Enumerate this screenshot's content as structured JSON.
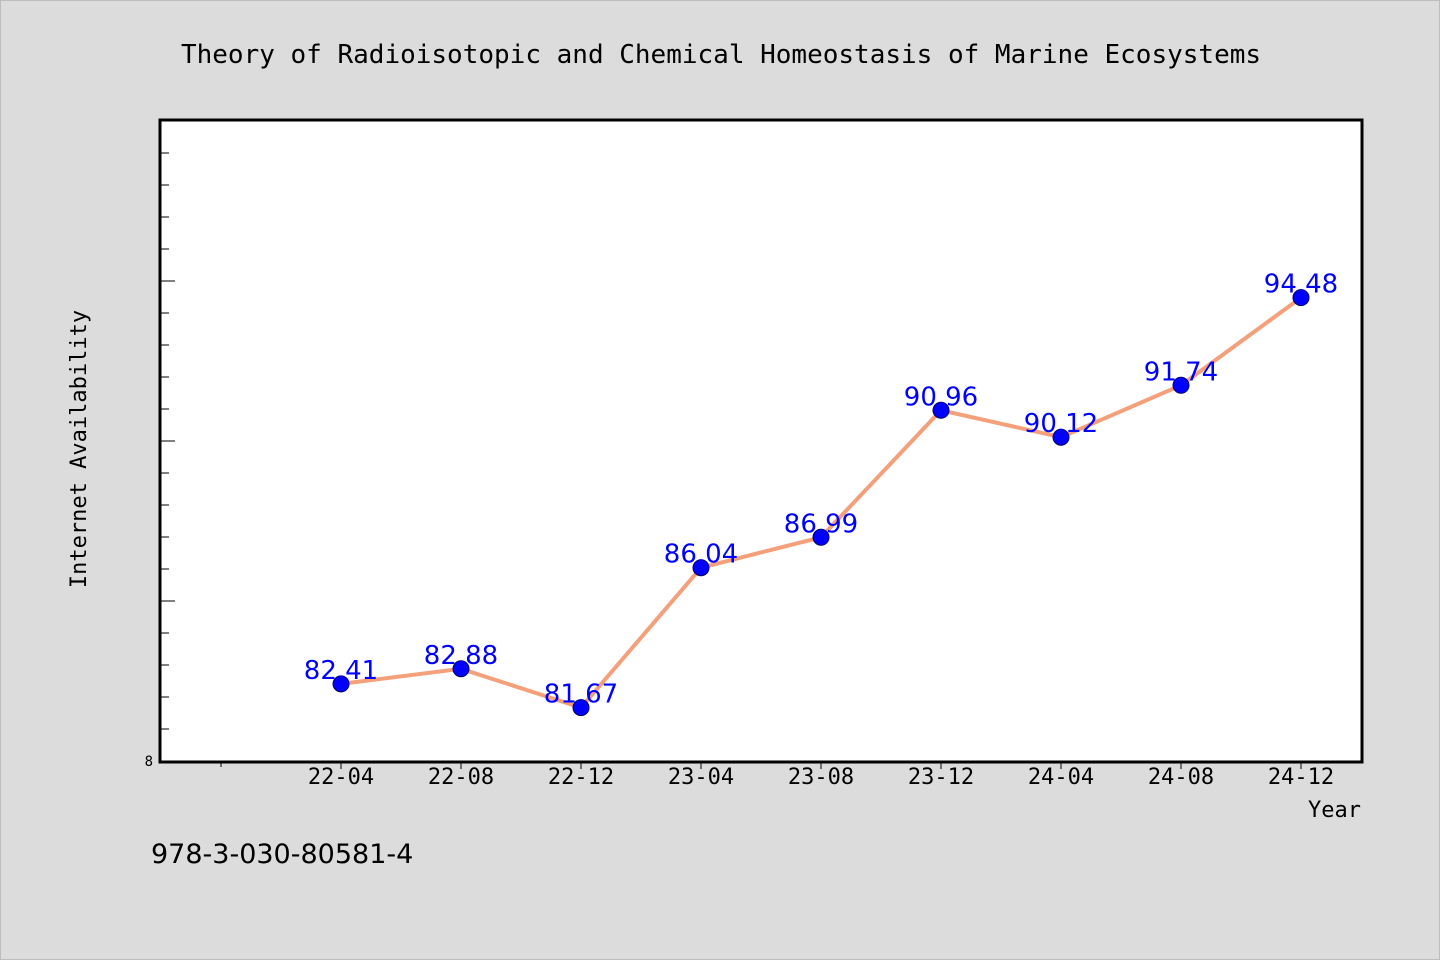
{
  "chart_data": {
    "type": "line",
    "title": "Theory of Radioisotopic and Chemical Homeostasis of Marine Ecosystems",
    "xlabel": "Year",
    "ylabel": "Internet Availability",
    "categories": [
      "22-04",
      "22-08",
      "22-12",
      "23-04",
      "23-08",
      "23-12",
      "24-04",
      "24-08",
      "24-12"
    ],
    "series": [
      {
        "values": [
          82.41,
          82.88,
          81.67,
          86.04,
          86.99,
          90.96,
          90.12,
          91.74,
          94.48
        ]
      }
    ],
    "data_labels": [
      "82.41",
      "82.88",
      "81.67",
      "86.04",
      "86.99",
      "90.96",
      "90.12",
      "91.74",
      "94.48"
    ],
    "ylim": [
      80,
      100
    ],
    "ytick_labels": [
      "8"
    ],
    "grid": false,
    "colors": {
      "line": "#f4a07a",
      "marker": "#0000ff",
      "data_label": "#0000ff",
      "plot_background": "#ffffff",
      "page_background": "#dcdcdc"
    }
  },
  "footer": {
    "isbn": "978-3-030-80581-4"
  }
}
